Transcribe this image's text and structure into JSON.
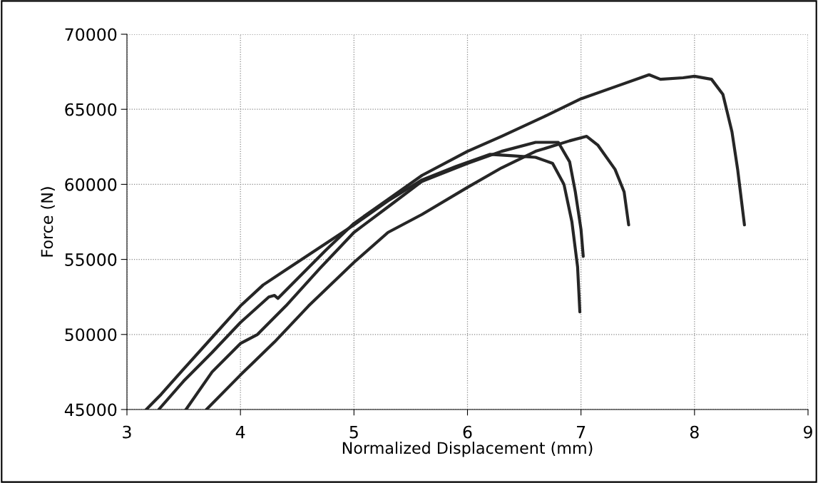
{
  "chart_data": {
    "type": "line",
    "xlabel": "Normalized Displacement (mm)",
    "ylabel": "Force (N)",
    "xlim": [
      3,
      9
    ],
    "xticks": [
      3,
      4,
      5,
      6,
      7,
      8,
      9
    ],
    "ylim": [
      45000,
      70000
    ],
    "yticks": [
      45000,
      50000,
      55000,
      60000,
      65000,
      70000
    ],
    "grid": true,
    "marker": "none",
    "line_style": "solid",
    "series": [
      {
        "color": "#262626",
        "x": [
          3.17,
          3.3,
          3.5,
          3.75,
          4.0,
          4.2,
          4.4,
          4.6,
          4.8,
          5.0,
          5.3,
          5.6,
          5.9,
          6.2,
          6.4,
          6.6,
          6.75,
          6.85,
          6.92,
          6.97,
          6.99
        ],
        "values": [
          45000,
          46000,
          47700,
          49800,
          51900,
          53300,
          54300,
          55300,
          56300,
          57300,
          58900,
          60300,
          61200,
          62000,
          61900,
          61800,
          61400,
          60000,
          57500,
          54500,
          51500
        ]
      },
      {
        "color": "#262626",
        "x": [
          3.28,
          3.5,
          3.75,
          4.0,
          4.25,
          4.3,
          4.33,
          4.5,
          4.75,
          5.0,
          5.3,
          5.6,
          6.0,
          6.3,
          6.7,
          7.0,
          7.3,
          7.6,
          7.7,
          7.9,
          8.0,
          8.15,
          8.25,
          8.33,
          8.38,
          8.44
        ],
        "values": [
          45000,
          46900,
          48800,
          50800,
          52500,
          52600,
          52400,
          53700,
          55600,
          57400,
          59000,
          60600,
          62200,
          63200,
          64600,
          65700,
          66500,
          67300,
          67000,
          67100,
          67200,
          67000,
          66000,
          63500,
          61000,
          57300
        ]
      },
      {
        "color": "#262626",
        "x": [
          3.52,
          3.75,
          4.0,
          4.15,
          4.4,
          4.7,
          5.0,
          5.3,
          5.6,
          6.0,
          6.3,
          6.6,
          6.8,
          6.9,
          6.95,
          7.0,
          7.02
        ],
        "values": [
          45000,
          47500,
          49400,
          50000,
          51900,
          54400,
          56800,
          58500,
          60200,
          61400,
          62200,
          62800,
          62800,
          61500,
          59500,
          57000,
          55200
        ]
      },
      {
        "color": "#262626",
        "x": [
          3.7,
          4.0,
          4.3,
          4.6,
          5.0,
          5.3,
          5.6,
          6.0,
          6.3,
          6.6,
          6.9,
          7.05,
          7.15,
          7.3,
          7.38,
          7.42
        ],
        "values": [
          45000,
          47300,
          49500,
          51900,
          54800,
          56800,
          58000,
          59800,
          61100,
          62200,
          62900,
          63200,
          62600,
          61000,
          59500,
          57300
        ]
      }
    ]
  }
}
